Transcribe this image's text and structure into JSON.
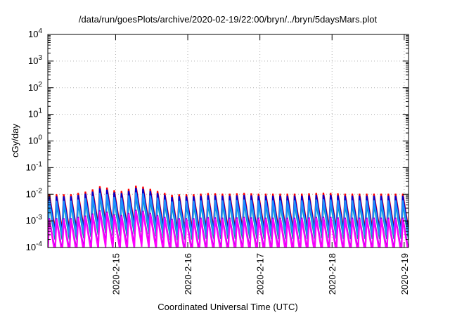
{
  "chart_data": {
    "type": "line",
    "title": "/data/run/goesPlots/archive/2020-02-19/22:00/bryn/../bryn/5daysMars.plot",
    "xlabel": "Coordinated Universal Time (UTC)",
    "ylabel": "cGy/day",
    "yscale": "log",
    "ylim": [
      0.0001,
      10000
    ],
    "xlim": [
      0,
      5.0
    ],
    "grid": true,
    "y_ticks": [
      {
        "base": "10",
        "exp": "-4"
      },
      {
        "base": "10",
        "exp": "-3"
      },
      {
        "base": "10",
        "exp": "-2"
      },
      {
        "base": "10",
        "exp": "-1"
      },
      {
        "base": "10",
        "exp": "0"
      },
      {
        "base": "10",
        "exp": "1"
      },
      {
        "base": "10",
        "exp": "2"
      },
      {
        "base": "10",
        "exp": "3"
      },
      {
        "base": "10",
        "exp": "4"
      }
    ],
    "x_ticks": [
      {
        "label": "2020-2-15",
        "x": 0.94
      },
      {
        "label": "2020-2-16",
        "x": 1.94
      },
      {
        "label": "2020-2-17",
        "x": 2.94
      },
      {
        "label": "2020-2-18",
        "x": 3.94
      },
      {
        "label": "2020-2-19",
        "x": 4.94
      }
    ],
    "sawtooth": {
      "period_days": 0.1,
      "cycles": 50,
      "bump": [
        0,
        0,
        0,
        0,
        0.05,
        0.1,
        0.18,
        0.3,
        0.25,
        0.15,
        0.12,
        0.2,
        0.32,
        0.28,
        0.2,
        0.12,
        0.05,
        -0.02,
        0,
        0,
        0,
        0.02,
        0.04,
        0.03,
        0.02,
        0.02,
        0.03,
        0.05,
        0.03,
        0.02,
        0.02,
        0.02,
        0.02,
        0.02,
        0.02,
        0.02,
        0.03,
        0.05,
        0.06,
        0.05,
        0.03,
        0.02,
        0.02,
        0.02,
        0.02,
        0.02,
        0.02,
        0.02,
        0.02,
        0.02
      ]
    },
    "series": [
      {
        "color": "#ff0000",
        "peak_log": -2.0,
        "trough_log": -3.35
      },
      {
        "color": "#0000cc",
        "peak_log": -2.08,
        "trough_log": -3.45
      },
      {
        "color": "#00a0a0",
        "peak_log": -2.35,
        "trough_log": -3.7
      },
      {
        "color": "#1e90ff",
        "peak_log": -2.25,
        "trough_log": -3.55
      },
      {
        "color": "#9400d3",
        "peak_log": -2.9,
        "trough_log": -4.15
      },
      {
        "color": "#ff00ff",
        "peak_log": -2.95,
        "trough_log": -4.25
      }
    ]
  }
}
